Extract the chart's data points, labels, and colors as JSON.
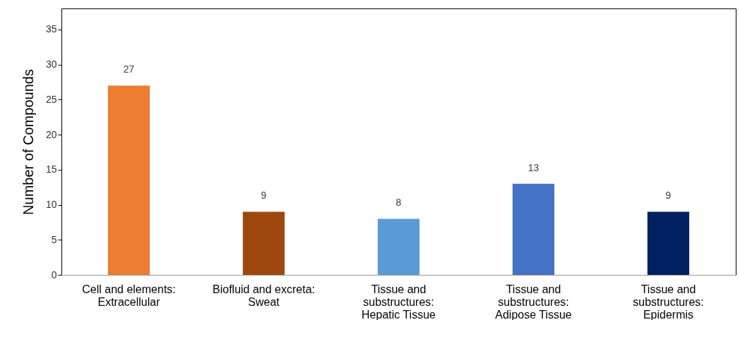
{
  "chart_data": {
    "type": "bar",
    "ylabel": "Number of Compounds",
    "categories": [
      "Cell and elements:\nExtracellular",
      "Biofluid and excreta:\nSweat",
      "Tissue and\nsubstructures:\nHepatic Tissue",
      "Tissue and\nsubstructures:\nAdipose Tissue",
      "Tissue and\nsubstructures:\nEpidermis"
    ],
    "values": [
      27,
      9,
      8,
      13,
      9
    ],
    "colors": [
      "#ed7d31",
      "#9e480e",
      "#5b9bd5",
      "#4472c4",
      "#002060"
    ],
    "ylim": [
      0,
      38
    ],
    "yticks": [
      0,
      5,
      10,
      15,
      20,
      25,
      30,
      35
    ],
    "data_labels": true,
    "grid": false
  }
}
